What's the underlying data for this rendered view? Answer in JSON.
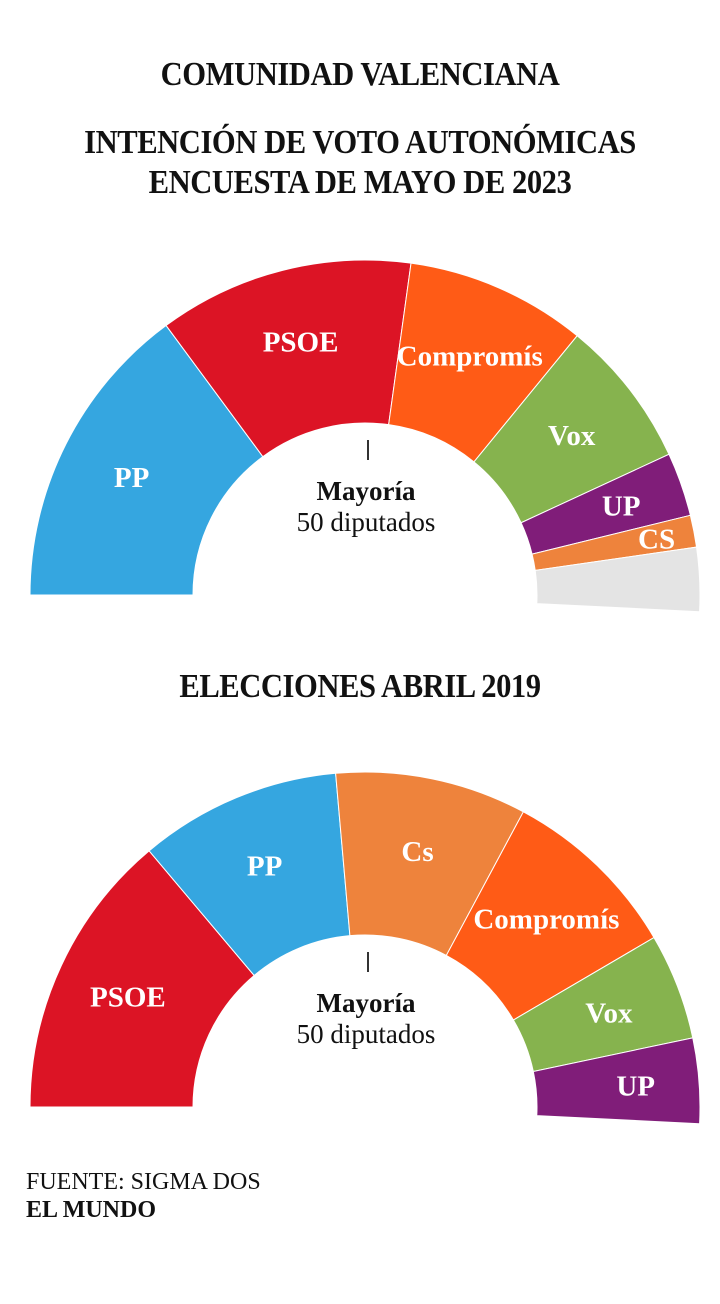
{
  "header": {
    "region": "COMUNIDAD VALENCIANA",
    "subtitle_line1": "INTENCIÓN DE VOTO AUTONÓMICAS",
    "subtitle_line2": "ENCUESTA DE MAYO DE 2023"
  },
  "chart_data": [
    {
      "type": "pie",
      "title": "INTENCIÓN DE VOTO AUTONÓMICAS — ENCUESTA DE MAYO DE 2023",
      "total_seats": 99,
      "majority": {
        "label": "Mayoría",
        "text": "50 diputados",
        "seats": 50
      },
      "parties": [
        {
          "name": "PP",
          "label": "PP",
          "seats": 29,
          "color": "#35A6E0"
        },
        {
          "name": "PSOE",
          "label": "PSOE",
          "seats": 24,
          "color": "#DC1425"
        },
        {
          "name": "Compromís",
          "label": "Compromís",
          "seats": 17,
          "color": "#FF5B16"
        },
        {
          "name": "Vox",
          "label": "Vox",
          "seats": 14,
          "color": "#86B34E"
        },
        {
          "name": "UP",
          "label": "UP",
          "seats": 6,
          "color": "#801D79"
        },
        {
          "name": "CS",
          "label": "CS",
          "seats": 3,
          "color": "#EE833C"
        },
        {
          "name": "",
          "label": "",
          "seats": 6,
          "color": "#E4E4E4"
        }
      ]
    },
    {
      "type": "pie",
      "title": "ELECCIONES ABRIL 2019",
      "total_seats": 99,
      "majority": {
        "label": "Mayoría",
        "text": "50 diputados",
        "seats": 50
      },
      "parties": [
        {
          "name": "PSOE",
          "label": "PSOE",
          "seats": 27,
          "color": "#DC1425"
        },
        {
          "name": "PP",
          "label": "PP",
          "seats": 19,
          "color": "#35A6E0"
        },
        {
          "name": "Cs",
          "label": "Cs",
          "seats": 18,
          "color": "#EE833C"
        },
        {
          "name": "Compromís",
          "label": "Compromís",
          "seats": 17,
          "color": "#FF5B16"
        },
        {
          "name": "Vox",
          "label": "Vox",
          "seats": 10,
          "color": "#86B34E"
        },
        {
          "name": "UP",
          "label": "UP",
          "seats": 8,
          "color": "#801D79"
        }
      ]
    }
  ],
  "footer": {
    "source": "FUENTE: SIGMA DOS",
    "brand": "EL MUNDO"
  }
}
